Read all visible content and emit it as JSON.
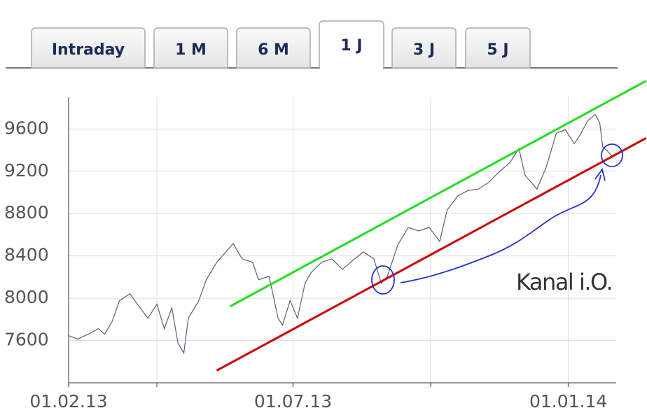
{
  "tabs": {
    "labels": [
      "Intraday",
      "1 M",
      "6 M",
      "1 J",
      "3 J",
      "5 J"
    ],
    "active": 3
  },
  "chart_data": {
    "type": "line",
    "x": [
      "2013-02-01",
      "2013-02-07",
      "2013-02-14",
      "2013-02-21",
      "2013-02-25",
      "2013-03-02",
      "2013-03-07",
      "2013-03-14",
      "2013-03-19",
      "2013-03-26",
      "2013-04-01",
      "2013-04-06",
      "2013-04-11",
      "2013-04-15",
      "2013-04-19",
      "2013-04-22",
      "2013-04-29",
      "2013-05-04",
      "2013-05-11",
      "2013-05-22",
      "2013-05-28",
      "2013-06-04",
      "2013-06-08",
      "2013-06-15",
      "2013-06-21",
      "2013-06-24",
      "2013-06-29",
      "2013-07-04",
      "2013-07-09",
      "2013-07-13",
      "2013-07-20",
      "2013-07-27",
      "2013-08-03",
      "2013-08-10",
      "2013-08-17",
      "2013-08-24",
      "2013-08-29",
      "2013-09-02",
      "2013-09-09",
      "2013-09-16",
      "2013-09-23",
      "2013-09-30",
      "2013-10-07",
      "2013-10-12",
      "2013-10-19",
      "2013-10-26",
      "2013-11-02",
      "2013-11-09",
      "2013-11-16",
      "2013-11-23",
      "2013-11-29",
      "2013-12-03",
      "2013-12-11",
      "2013-12-17",
      "2013-12-24",
      "2013-12-30",
      "2014-01-05",
      "2014-01-09",
      "2014-01-14",
      "2014-01-19",
      "2014-01-22",
      "2014-01-24",
      "2014-01-27",
      "2014-01-31"
    ],
    "series": [
      {
        "color": "#5a6070",
        "values": [
          7646,
          7613,
          7659,
          7712,
          7659,
          7778,
          7976,
          8042,
          7943,
          7811,
          7943,
          7712,
          7910,
          7580,
          7481,
          7811,
          7976,
          8174,
          8339,
          8517,
          8372,
          8339,
          8174,
          8207,
          7811,
          7745,
          7976,
          7811,
          8141,
          8240,
          8339,
          8372,
          8273,
          8359,
          8438,
          8372,
          8141,
          8207,
          8504,
          8669,
          8636,
          8669,
          8537,
          8834,
          8966,
          9019,
          9032,
          9098,
          9197,
          9283,
          9415,
          9164,
          9032,
          9230,
          9560,
          9593,
          9461,
          9547,
          9679,
          9738,
          9659,
          9428,
          9395,
          9329
        ]
      }
    ],
    "xlim": [
      "2013-02-01",
      "2014-02-02"
    ],
    "xticks": [
      {
        "value": "2013-02-01",
        "label": "01.02.13"
      },
      {
        "value": "2013-04-01",
        "label": null
      },
      {
        "value": "2013-07-01",
        "label": "01.07.13"
      },
      {
        "value": "2013-10-01",
        "label": null
      },
      {
        "value": "2014-01-01",
        "label": "01.01.14"
      }
    ],
    "ylim": [
      7200,
      9900
    ],
    "yticks": [
      7600,
      8000,
      8400,
      8800,
      9200,
      9600
    ],
    "grid": true,
    "channel_lines": [
      {
        "color": "#22dd22",
        "x": [
          "2013-05-20",
          "2014-02-22"
        ],
        "values": [
          7923,
          10055
        ]
      },
      {
        "color": "#cc0000",
        "x": [
          "2013-05-11",
          "2014-02-22"
        ],
        "values": [
          7316,
          9514
        ]
      }
    ],
    "annotation": "Kanal i.O."
  }
}
